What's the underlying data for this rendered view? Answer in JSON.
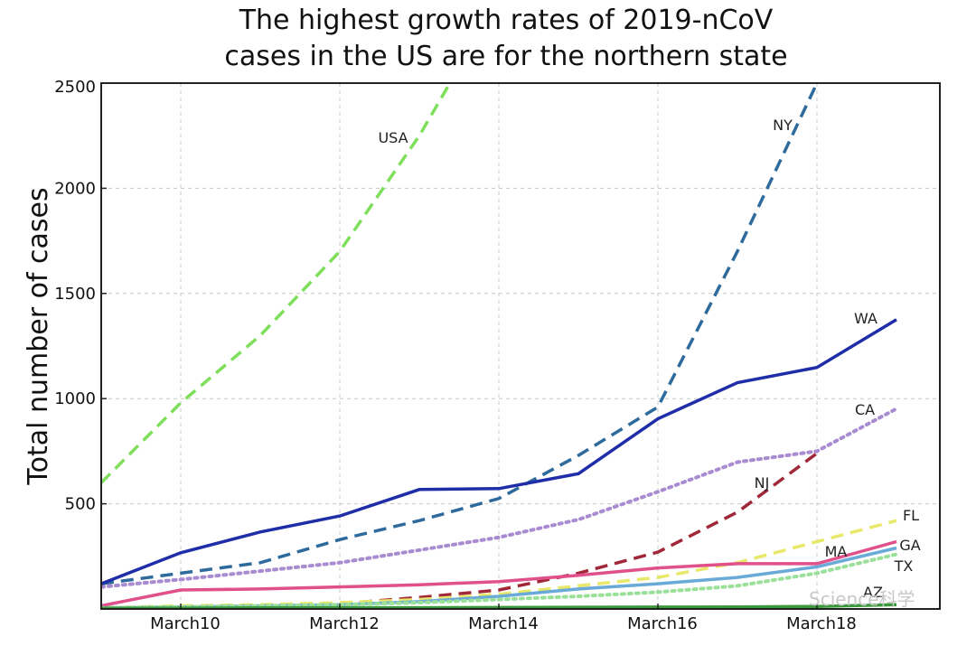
{
  "chart_data": {
    "type": "line",
    "title": [
      "The highest growth rates of 2019-nCoV",
      "cases in the US are for the northern state"
    ],
    "xlabel": "",
    "ylabel": "Total number of cases",
    "x_ticks": [
      "March10",
      "March12",
      "March14",
      "March16",
      "March18"
    ],
    "ylim": [
      0,
      2500
    ],
    "y_ticks": [
      500,
      1000,
      1500,
      2000,
      2500
    ],
    "grid": true,
    "x": [
      "March9",
      "March10",
      "March11",
      "March12",
      "March13",
      "March14",
      "March15",
      "March16",
      "March17",
      "March18",
      "March19"
    ],
    "series": [
      {
        "name": "USA",
        "color": "#7ee05a",
        "style": "dashed",
        "values": [
          600,
          980,
          1300,
          1700,
          2250,
          2900,
          null,
          null,
          null,
          null,
          null
        ]
      },
      {
        "name": "NY",
        "color": "#2e6a9c",
        "style": "dashed",
        "values": [
          120,
          170,
          220,
          330,
          420,
          525,
          730,
          960,
          1700,
          2500,
          null
        ]
      },
      {
        "name": "WA",
        "color": "#1f2ea8",
        "style": "solid",
        "values": [
          120,
          267,
          366,
          442,
          568,
          572,
          643,
          904,
          1076,
          1148,
          1376
        ]
      },
      {
        "name": "CA",
        "color": "#a88bd0",
        "style": "dotted",
        "values": [
          105,
          140,
          180,
          220,
          280,
          340,
          425,
          557,
          698,
          750,
          952
        ]
      },
      {
        "name": "NJ",
        "color": "#a02838",
        "style": "dashed",
        "values": [
          5,
          10,
          15,
          25,
          55,
          90,
          170,
          270,
          460,
          740,
          null
        ]
      },
      {
        "name": "FL",
        "color": "#e8e86a",
        "style": "dashed",
        "values": [
          5,
          15,
          20,
          30,
          45,
          70,
          110,
          150,
          220,
          320,
          420
        ]
      },
      {
        "name": "GA",
        "color": "#e0508a",
        "style": "solid",
        "values": [
          15,
          90,
          95,
          105,
          115,
          130,
          160,
          195,
          215,
          215,
          320
        ]
      },
      {
        "name": "MA",
        "color": "#6aaad8",
        "style": "solid",
        "values": [
          5,
          10,
          15,
          20,
          35,
          60,
          95,
          120,
          150,
          200,
          290
        ]
      },
      {
        "name": "TX",
        "color": "#9ae09a",
        "style": "dotted",
        "values": [
          5,
          10,
          15,
          20,
          30,
          45,
          60,
          80,
          110,
          170,
          260
        ]
      },
      {
        "name": "AZ",
        "color": "#3a9a3a",
        "style": "solid",
        "values": [
          3,
          4,
          5,
          6,
          6,
          7,
          8,
          9,
          10,
          12,
          20
        ]
      }
    ]
  },
  "watermark": "Science科学"
}
